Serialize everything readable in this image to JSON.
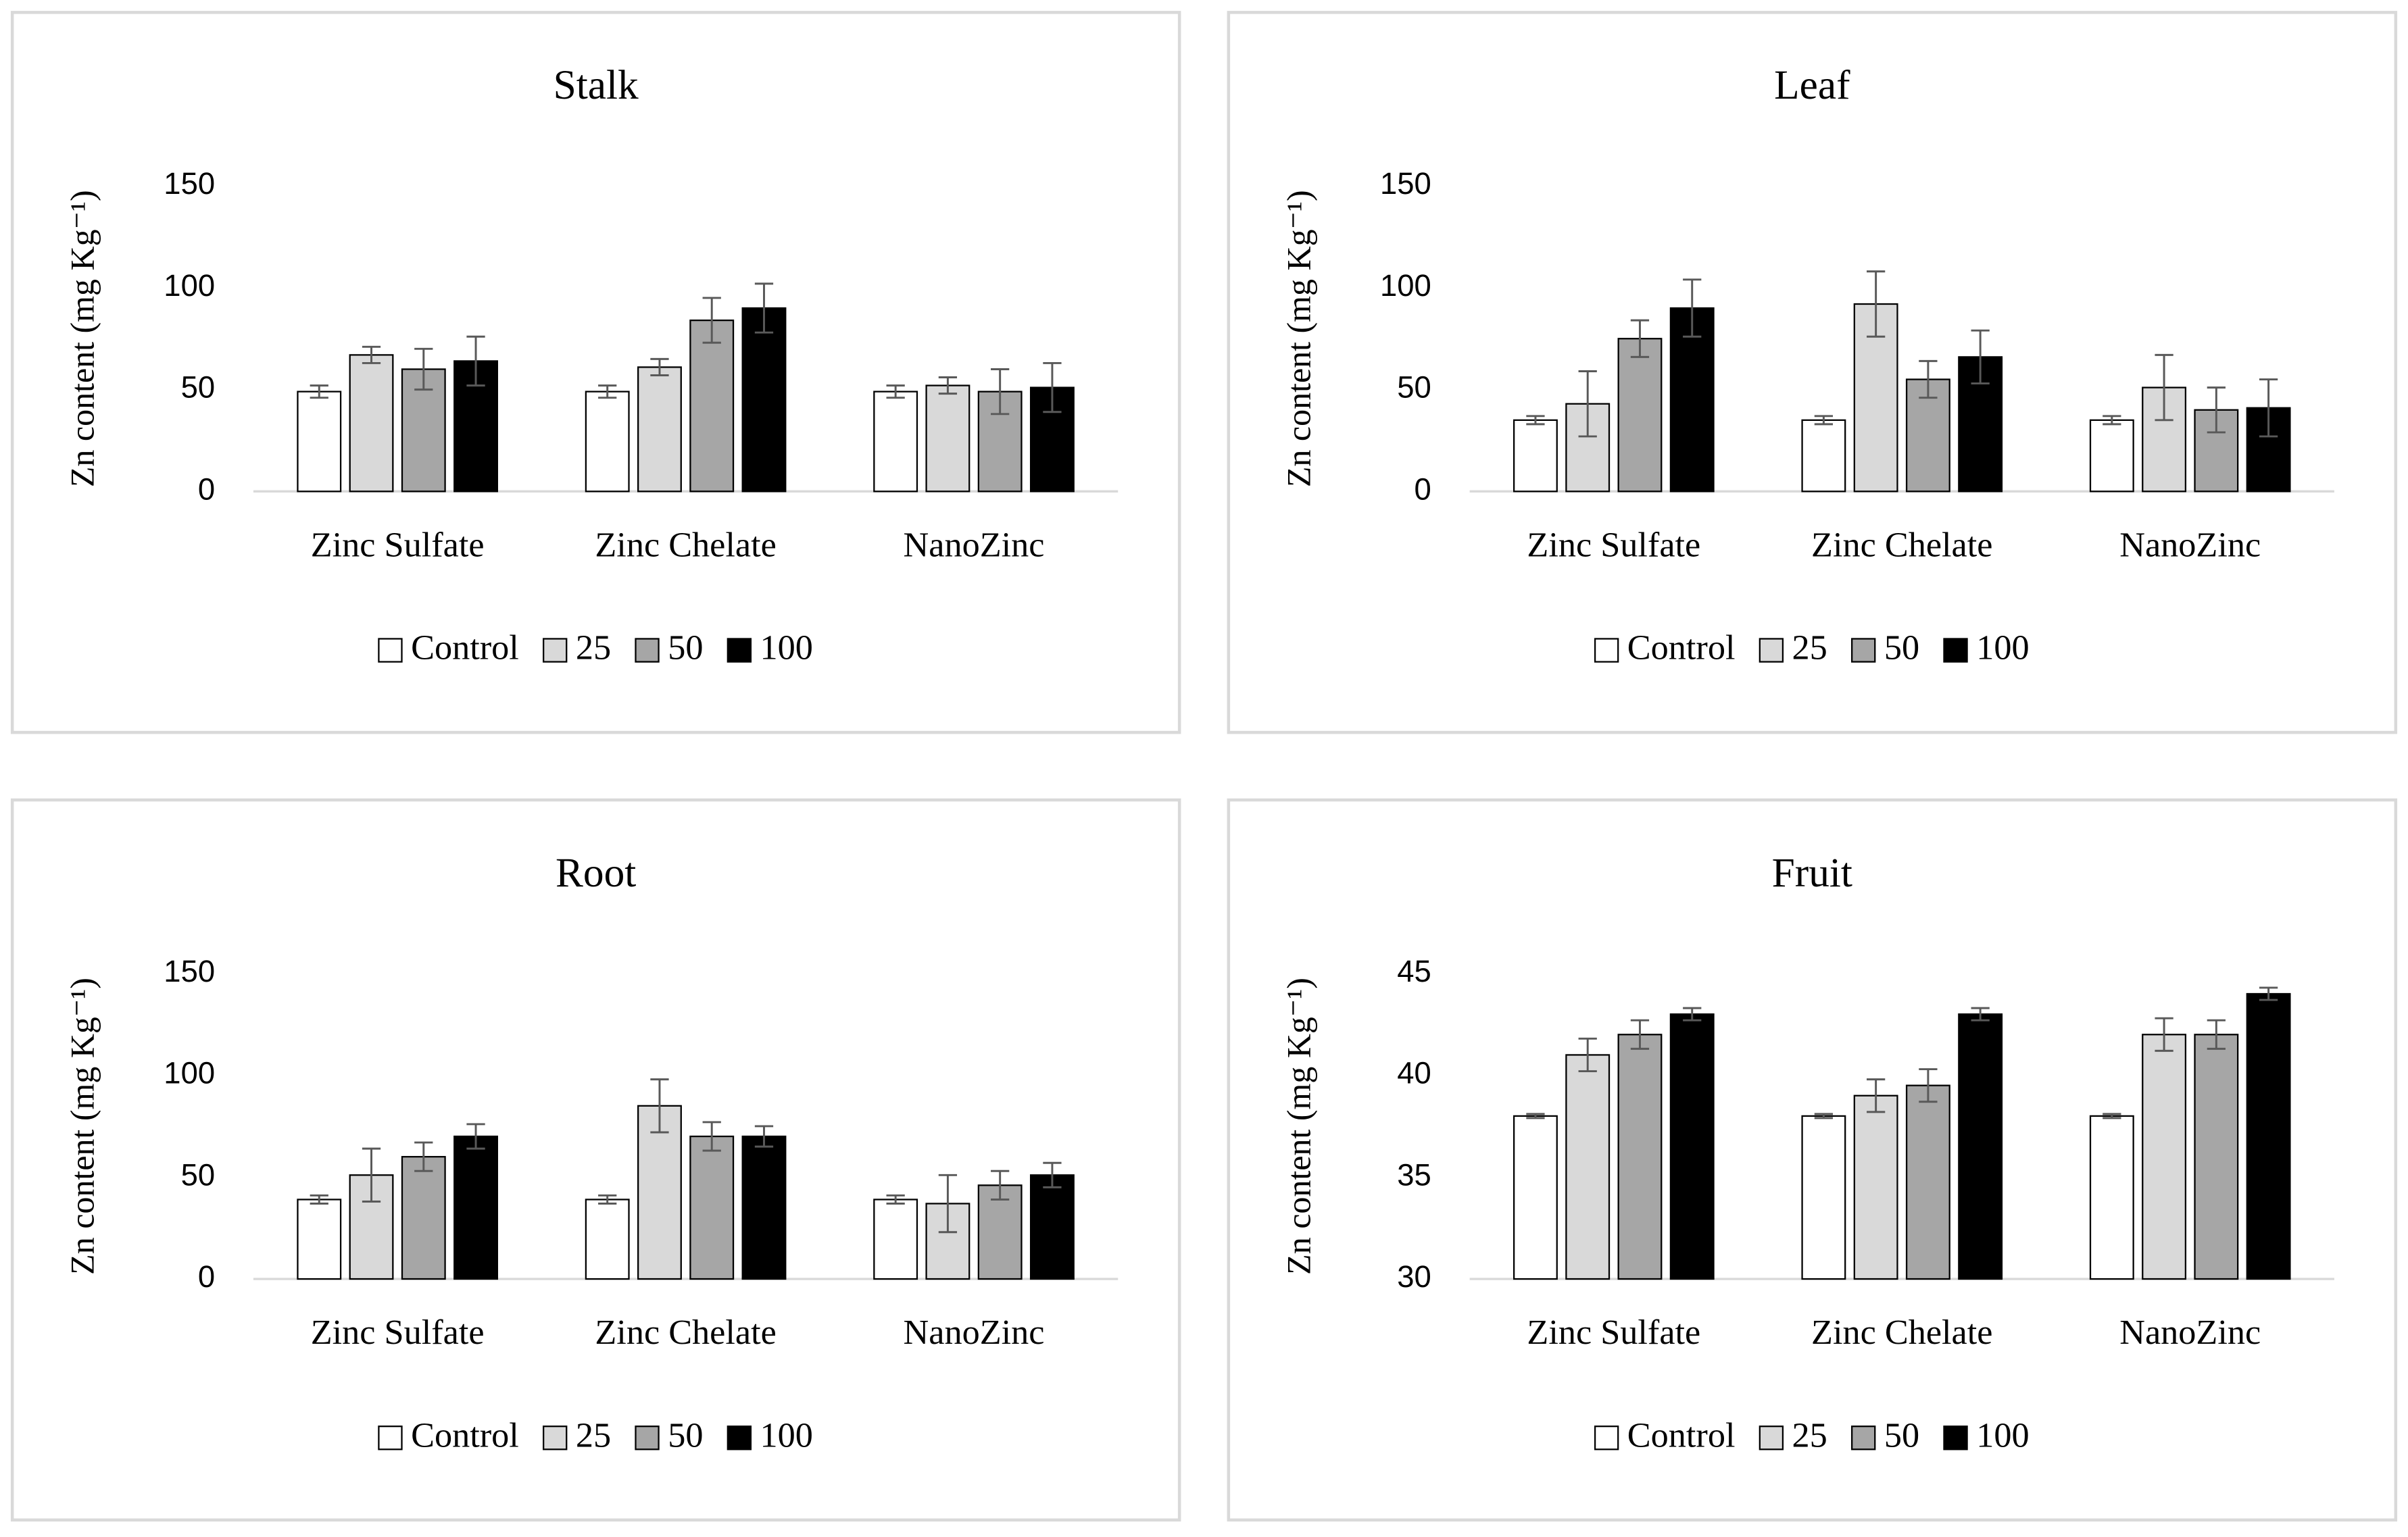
{
  "chart_data": [
    {
      "type": "bar",
      "title": "Stalk",
      "y_label": "Zn content (mg Kg⁻¹)",
      "categories": [
        "Zinc Sulfate",
        "Zinc Chelate",
        "NanoZinc"
      ],
      "series": [
        {
          "name": "Control",
          "color": "#ffffff",
          "values": [
            49,
            49,
            49
          ],
          "errors": [
            3,
            3,
            3
          ]
        },
        {
          "name": "25",
          "color": "#d9d9d9",
          "values": [
            67,
            61,
            52
          ],
          "errors": [
            4,
            4,
            4
          ]
        },
        {
          "name": "50",
          "color": "#a6a6a6",
          "values": [
            60,
            84,
            49
          ],
          "errors": [
            10,
            11,
            11
          ]
        },
        {
          "name": "100",
          "color": "#000000",
          "values": [
            64,
            90,
            51
          ],
          "errors": [
            12,
            12,
            12
          ]
        }
      ],
      "ylim": [
        0,
        150
      ],
      "yticks": [
        0,
        50,
        100,
        150
      ],
      "grid": false,
      "legend": "bottom"
    },
    {
      "type": "bar",
      "title": "Leaf",
      "y_label": "Zn content (mg Kg⁻¹)",
      "categories": [
        "Zinc Sulfate",
        "Zinc Chelate",
        "NanoZinc"
      ],
      "series": [
        {
          "name": "Control",
          "color": "#ffffff",
          "values": [
            35,
            35,
            35
          ],
          "errors": [
            2,
            2,
            2
          ]
        },
        {
          "name": "25",
          "color": "#d9d9d9",
          "values": [
            43,
            92,
            51
          ],
          "errors": [
            16,
            16,
            16
          ]
        },
        {
          "name": "50",
          "color": "#a6a6a6",
          "values": [
            75,
            55,
            40
          ],
          "errors": [
            9,
            9,
            11
          ]
        },
        {
          "name": "100",
          "color": "#000000",
          "values": [
            90,
            66,
            41
          ],
          "errors": [
            14,
            13,
            14
          ]
        }
      ],
      "ylim": [
        0,
        150
      ],
      "yticks": [
        0,
        50,
        100,
        150
      ],
      "grid": false,
      "legend": "bottom"
    },
    {
      "type": "bar",
      "title": "Root",
      "y_label": "Zn content (mg Kg⁻¹)",
      "categories": [
        "Zinc Sulfate",
        "Zinc Chelate",
        "NanoZinc"
      ],
      "series": [
        {
          "name": "Control",
          "color": "#ffffff",
          "values": [
            39,
            39,
            39
          ],
          "errors": [
            2,
            2,
            2
          ]
        },
        {
          "name": "25",
          "color": "#d9d9d9",
          "values": [
            51,
            85,
            37
          ],
          "errors": [
            13,
            13,
            14
          ]
        },
        {
          "name": "50",
          "color": "#a6a6a6",
          "values": [
            60,
            70,
            46
          ],
          "errors": [
            7,
            7,
            7
          ]
        },
        {
          "name": "100",
          "color": "#000000",
          "values": [
            70,
            70,
            51
          ],
          "errors": [
            6,
            5,
            6
          ]
        }
      ],
      "ylim": [
        0,
        150
      ],
      "yticks": [
        0,
        50,
        100,
        150
      ],
      "grid": false,
      "legend": "bottom"
    },
    {
      "type": "bar",
      "title": "Fruit",
      "y_label": "Zn content (mg Kg⁻¹)",
      "categories": [
        "Zinc Sulfate",
        "Zinc Chelate",
        "NanoZinc"
      ],
      "series": [
        {
          "name": "Control",
          "color": "#ffffff",
          "values": [
            38,
            38,
            38
          ],
          "errors": [
            0.1,
            0.1,
            0.1
          ]
        },
        {
          "name": "25",
          "color": "#d9d9d9",
          "values": [
            41,
            39,
            42
          ],
          "errors": [
            0.8,
            0.8,
            0.8
          ]
        },
        {
          "name": "50",
          "color": "#a6a6a6",
          "values": [
            42,
            39.5,
            42
          ],
          "errors": [
            0.7,
            0.8,
            0.7
          ]
        },
        {
          "name": "100",
          "color": "#000000",
          "values": [
            43,
            43,
            44
          ],
          "errors": [
            0.3,
            0.3,
            0.3
          ]
        }
      ],
      "ylim": [
        30,
        45
      ],
      "yticks": [
        30,
        35,
        40,
        45
      ],
      "grid": false,
      "legend": "bottom"
    }
  ]
}
